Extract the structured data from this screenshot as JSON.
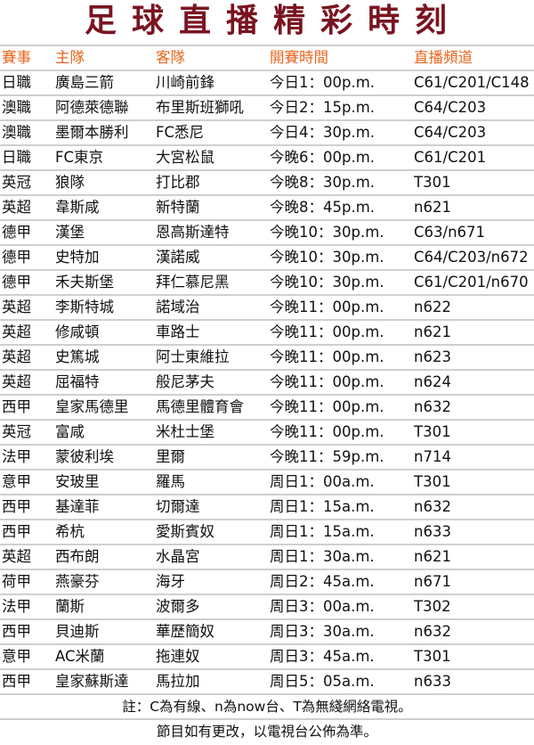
{
  "title": "足球直播精彩時刻",
  "accent_title_color": "#7a1420",
  "accent_header_color": "#e8661e",
  "columns": [
    "賽事",
    "主隊",
    "客隊",
    "開賽時間",
    "直播頻道"
  ],
  "rows": [
    [
      "日職",
      "廣島三箭",
      "川崎前鋒",
      "今日1：00p.m.",
      "C61/C201/C148"
    ],
    [
      "澳職",
      "阿德萊德聯",
      "布里斯班獅吼",
      "今日2：15p.m.",
      "C64/C203"
    ],
    [
      "澳職",
      "墨爾本勝利",
      "FC悉尼",
      "今日4：30p.m.",
      "C64/C203"
    ],
    [
      "日職",
      "FC東京",
      "大宮松鼠",
      "今晚6：00p.m.",
      "C61/C201"
    ],
    [
      "英冠",
      "狼隊",
      "打比郡",
      "今晚8：30p.m.",
      "T301"
    ],
    [
      "英超",
      "韋斯咸",
      "新特蘭",
      "今晚8：45p.m.",
      "n621"
    ],
    [
      "德甲",
      "漢堡",
      "恩高斯達特",
      "今晚10：30p.m.",
      "C63/n671"
    ],
    [
      "德甲",
      "史特加",
      "漢諾威",
      "今晚10：30p.m.",
      "C64/C203/n672"
    ],
    [
      "德甲",
      "禾夫斯堡",
      "拜仁慕尼黑",
      "今晚10：30p.m.",
      "C61/C201/n670"
    ],
    [
      "英超",
      "李斯特城",
      "諾域治",
      "今晚11：00p.m.",
      "n622"
    ],
    [
      "英超",
      "修咸頓",
      "車路士",
      "今晚11：00p.m.",
      "n621"
    ],
    [
      "英超",
      "史篤城",
      "阿士東維拉",
      "今晚11：00p.m.",
      "n623"
    ],
    [
      "英超",
      "屈福特",
      "般尼茅夫",
      "今晚11：00p.m.",
      "n624"
    ],
    [
      "西甲",
      "皇家馬德里",
      "馬德里體育會",
      "今晚11：00p.m.",
      "n632"
    ],
    [
      "英冠",
      "富咸",
      "米杜士堡",
      "今晚11：00p.m.",
      "T301"
    ],
    [
      "法甲",
      "蒙彼利埃",
      "里爾",
      "今晚11：59p.m.",
      "n714"
    ],
    [
      "意甲",
      "安玻里",
      "羅馬",
      "周日1：00a.m.",
      "T301"
    ],
    [
      "西甲",
      "基達菲",
      "切爾達",
      "周日1：15a.m.",
      "n632"
    ],
    [
      "西甲",
      "希杭",
      "愛斯賓奴",
      "周日1：15a.m.",
      "n633"
    ],
    [
      "英超",
      "西布朗",
      "水晶宮",
      "周日1：30a.m.",
      "n621"
    ],
    [
      "荷甲",
      "燕豪芬",
      "海牙",
      "周日2：45a.m.",
      "n671"
    ],
    [
      "法甲",
      "蘭斯",
      "波爾多",
      "周日3：00a.m.",
      "T302"
    ],
    [
      "西甲",
      "貝迪斯",
      "華歷簡奴",
      "周日3：30a.m.",
      "n632"
    ],
    [
      "意甲",
      "AC米蘭",
      "拖連奴",
      "周日3：45a.m.",
      "T301"
    ],
    [
      "西甲",
      "皇家蘇斯達",
      "馬拉加",
      "周日5：05a.m.",
      "n633"
    ]
  ],
  "note": "註：C為有線、n為now台、T為無綫網絡電視。",
  "disclaimer": "節目如有更改，以電視台公佈為準。"
}
